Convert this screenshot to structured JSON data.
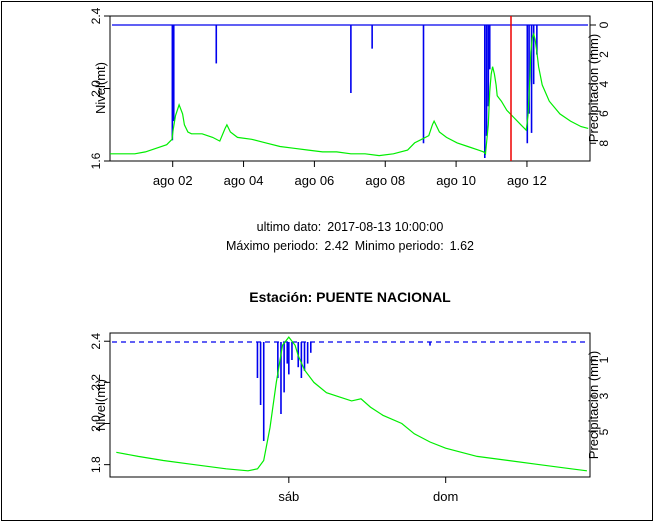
{
  "station_title": "Estación:  PUENTE NACIONAL",
  "info": {
    "last_label": "ultimo dato:",
    "last_value": "2017-08-13 10:00:00",
    "max_label": "Máximo periodo:",
    "max_value": "2.42",
    "min_label": "Minimo periodo:",
    "min_value": "1.62"
  },
  "colors": {
    "level": "#00ee00",
    "precip": "#0000ee",
    "marker": "#ee0000",
    "axis": "#000000"
  },
  "chart_data": [
    {
      "type": "line",
      "xlabel": "",
      "ylabel": "Nivel(mt)",
      "y2label": "Precipitacion (mm)",
      "xlim": [
        0.0,
        13.55
      ],
      "ylim": [
        1.6,
        2.4
      ],
      "y_ticks": [
        1.6,
        2.0,
        2.4
      ],
      "y2lim": [
        0,
        9.2
      ],
      "y2_reversed": true,
      "y2_ticks": [
        0,
        2,
        4,
        6,
        8
      ],
      "x_ticks": [
        {
          "pos": 1.77,
          "label": "ago 02"
        },
        {
          "pos": 3.77,
          "label": "ago 04"
        },
        {
          "pos": 5.77,
          "label": "ago 06"
        },
        {
          "pos": 7.77,
          "label": "ago 08"
        },
        {
          "pos": 9.77,
          "label": "ago 10"
        },
        {
          "pos": 11.77,
          "label": "ago 12"
        }
      ],
      "marker_x": 11.32,
      "series": [
        {
          "kind": "level",
          "x": [
            0.0,
            0.3,
            0.7,
            1.0,
            1.3,
            1.6,
            1.75,
            1.78,
            1.85,
            1.95,
            2.05,
            2.1,
            2.2,
            2.3,
            2.6,
            2.9,
            3.1,
            3.25,
            3.3,
            3.4,
            3.6,
            4.0,
            4.4,
            4.8,
            5.2,
            5.6,
            6.0,
            6.4,
            6.8,
            7.2,
            7.6,
            8.0,
            8.4,
            8.6,
            8.8,
            9.0,
            9.1,
            9.15,
            9.2,
            9.3,
            9.5,
            9.8,
            10.1,
            10.4,
            10.55,
            10.6,
            10.62,
            10.68,
            10.72,
            10.76,
            10.8,
            10.85,
            10.9,
            10.93,
            10.97,
            11.05,
            11.2,
            11.4,
            11.6,
            11.75,
            11.8,
            11.85,
            11.88,
            11.92,
            11.96,
            12.0,
            12.05,
            12.1,
            12.2,
            12.4,
            12.7,
            13.0,
            13.3,
            13.5
          ],
          "y": [
            1.64,
            1.64,
            1.64,
            1.65,
            1.67,
            1.69,
            1.72,
            1.77,
            1.85,
            1.91,
            1.86,
            1.8,
            1.76,
            1.75,
            1.75,
            1.73,
            1.71,
            1.78,
            1.8,
            1.76,
            1.73,
            1.72,
            1.7,
            1.68,
            1.67,
            1.66,
            1.65,
            1.65,
            1.64,
            1.64,
            1.63,
            1.64,
            1.66,
            1.7,
            1.72,
            1.74,
            1.8,
            1.82,
            1.8,
            1.76,
            1.73,
            1.7,
            1.68,
            1.66,
            1.65,
            1.64,
            1.68,
            1.8,
            1.98,
            2.08,
            2.12,
            2.08,
            2.02,
            1.96,
            1.95,
            1.93,
            1.88,
            1.84,
            1.8,
            1.77,
            1.85,
            2.05,
            2.2,
            2.28,
            2.3,
            2.27,
            2.2,
            2.12,
            2.02,
            1.93,
            1.86,
            1.82,
            1.79,
            1.78
          ]
        },
        {
          "kind": "precip",
          "x": [
            1.76,
            1.8,
            3.0,
            6.8,
            7.4,
            8.85,
            10.58,
            10.63,
            10.68,
            10.72,
            11.78,
            11.83,
            11.9,
            11.96,
            12.05
          ],
          "y": [
            7.8,
            6.5,
            2.6,
            4.6,
            1.6,
            8.0,
            9.0,
            7.5,
            5.5,
            3.0,
            8.0,
            6.0,
            7.3,
            4.0,
            2.0
          ]
        }
      ]
    },
    {
      "type": "line",
      "xlabel": "",
      "ylabel": "Nivel(mt)",
      "y2label": "Precipitacion (mm)",
      "xlim": [
        -1.07,
        0.46
      ],
      "ylim": [
        1.74,
        2.44
      ],
      "y_ticks": [
        1.8,
        2.0,
        2.2,
        2.4
      ],
      "y2lim": [
        0,
        7.5
      ],
      "y2_reversed": true,
      "y2_ticks": [
        1,
        3,
        5
      ],
      "x_ticks": [
        {
          "pos": -0.5,
          "label": "sáb"
        },
        {
          "pos": 0.0,
          "label": "dom"
        }
      ],
      "series": [
        {
          "kind": "level",
          "x": [
            -1.05,
            -0.98,
            -0.9,
            -0.8,
            -0.7,
            -0.63,
            -0.6,
            -0.58,
            -0.56,
            -0.54,
            -0.52,
            -0.5,
            -0.48,
            -0.47,
            -0.45,
            -0.42,
            -0.38,
            -0.34,
            -0.3,
            -0.27,
            -0.24,
            -0.2,
            -0.14,
            -0.1,
            -0.05,
            0.0,
            0.05,
            0.1,
            0.2,
            0.3,
            0.4,
            0.45
          ],
          "y": [
            1.86,
            1.84,
            1.82,
            1.8,
            1.78,
            1.77,
            1.78,
            1.82,
            1.98,
            2.2,
            2.38,
            2.42,
            2.38,
            2.33,
            2.26,
            2.2,
            2.15,
            2.13,
            2.11,
            2.12,
            2.08,
            2.04,
            2.0,
            1.95,
            1.91,
            1.88,
            1.86,
            1.84,
            1.82,
            1.8,
            1.78,
            1.77
          ]
        },
        {
          "kind": "precip",
          "x": [
            -0.6,
            -0.59,
            -0.58,
            -0.535,
            -0.525,
            -0.515,
            -0.505,
            -0.5,
            -0.49,
            -0.47,
            -0.46,
            -0.45,
            -0.44,
            -0.43,
            -0.05
          ],
          "y": [
            2.0,
            3.5,
            5.5,
            2.0,
            4.0,
            2.8,
            1.2,
            1.8,
            1.0,
            1.4,
            2.0,
            1.6,
            1.2,
            0.6,
            0.2
          ]
        }
      ]
    }
  ]
}
